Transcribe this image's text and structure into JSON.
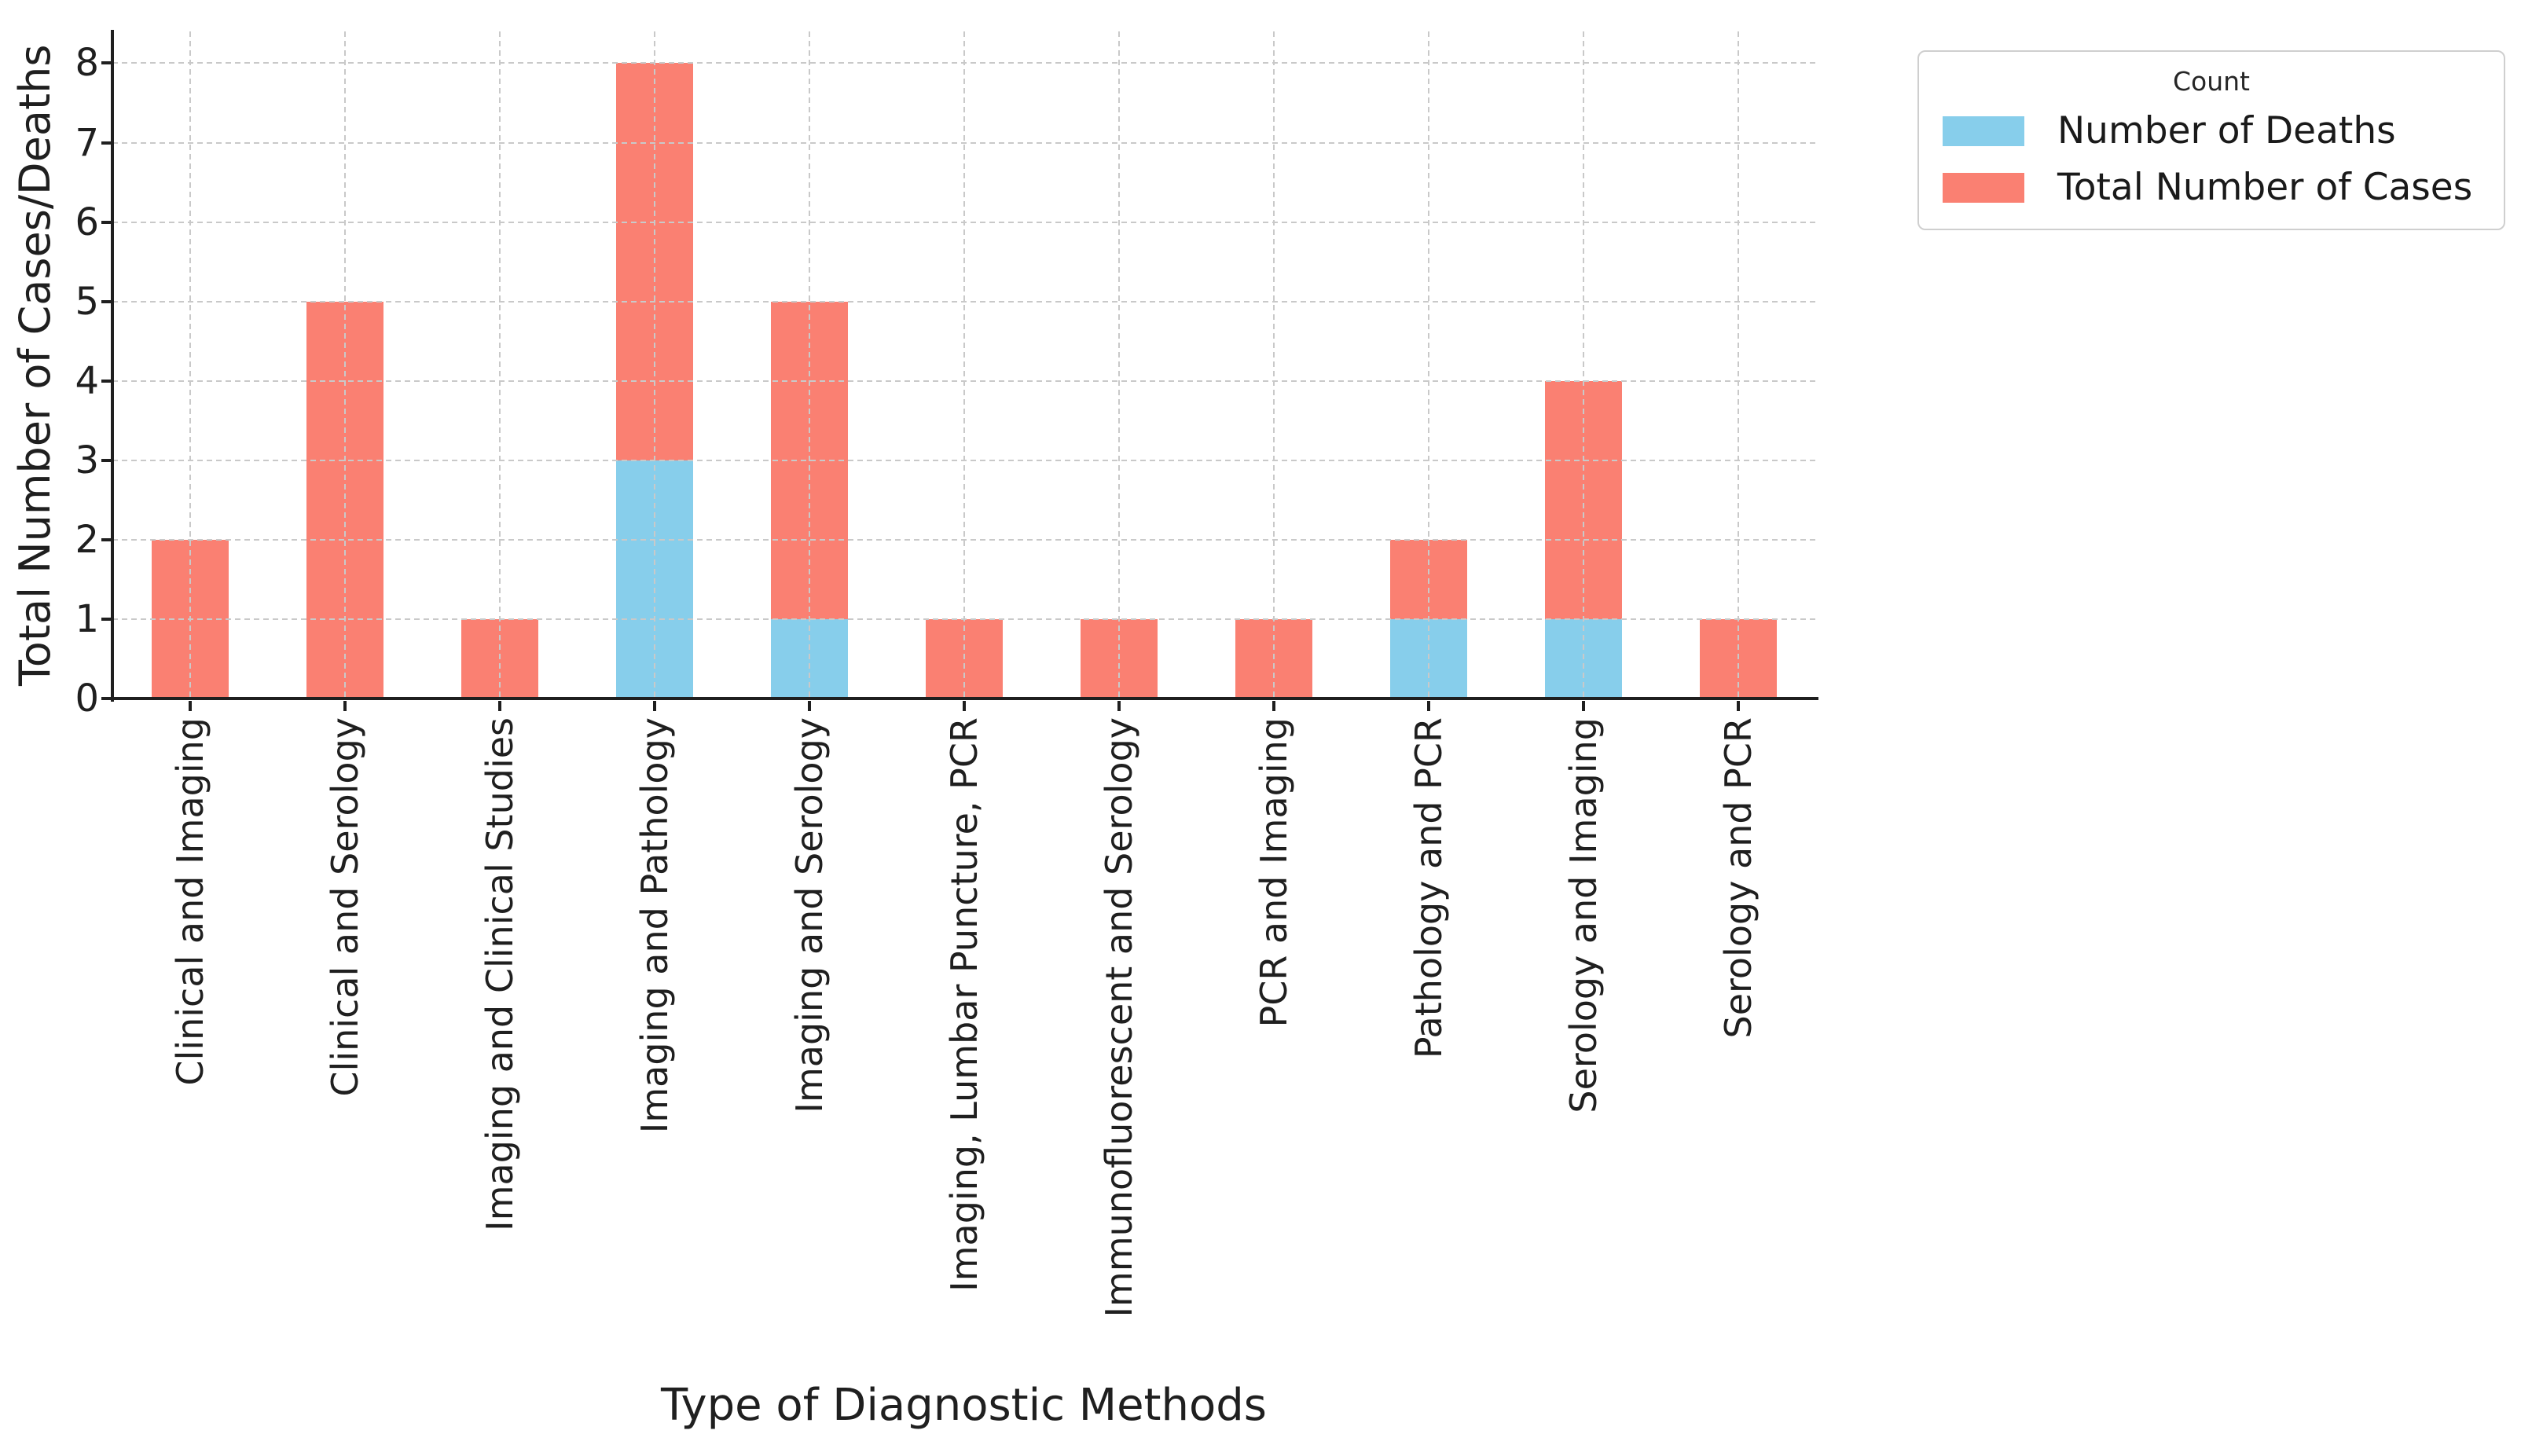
{
  "chart_data": {
    "type": "bar",
    "stacked": true,
    "title": "",
    "xlabel": "Type of Diagnostic Methods",
    "ylabel": "Total Number of Cases/Deaths",
    "categories": [
      "Clinical and Imaging",
      "Clinical and Serology",
      "Imaging and Clinical Studies",
      "Imaging and Pathology",
      "Imaging and Serology",
      "Imaging, Lumbar Puncture, PCR",
      "Immunofluorescent and Serology",
      "PCR and Imaging",
      "Pathology and PCR",
      "Serology and Imaging",
      "Serology and PCR"
    ],
    "series": [
      {
        "name": "Number of Deaths",
        "color": "#87CEEB",
        "values": [
          0,
          0,
          0,
          3,
          1,
          0,
          0,
          0,
          1,
          1,
          0
        ]
      },
      {
        "name": "Total Number of Cases",
        "color": "#FA8072",
        "values": [
          2,
          5,
          1,
          5,
          4,
          1,
          1,
          1,
          1,
          3,
          1
        ]
      }
    ],
    "stack_totals": [
      2,
      5,
      1,
      8,
      5,
      1,
      1,
      1,
      2,
      4,
      1
    ],
    "ylim": [
      0,
      8.4
    ],
    "yticks": [
      0,
      1,
      2,
      3,
      4,
      5,
      6,
      7,
      8
    ],
    "grid": true,
    "grid_style": "dashed",
    "grid_color": "#c9c9c9",
    "background_color": "#ffffff",
    "legend": {
      "title": "Count",
      "position": "upper right"
    }
  }
}
